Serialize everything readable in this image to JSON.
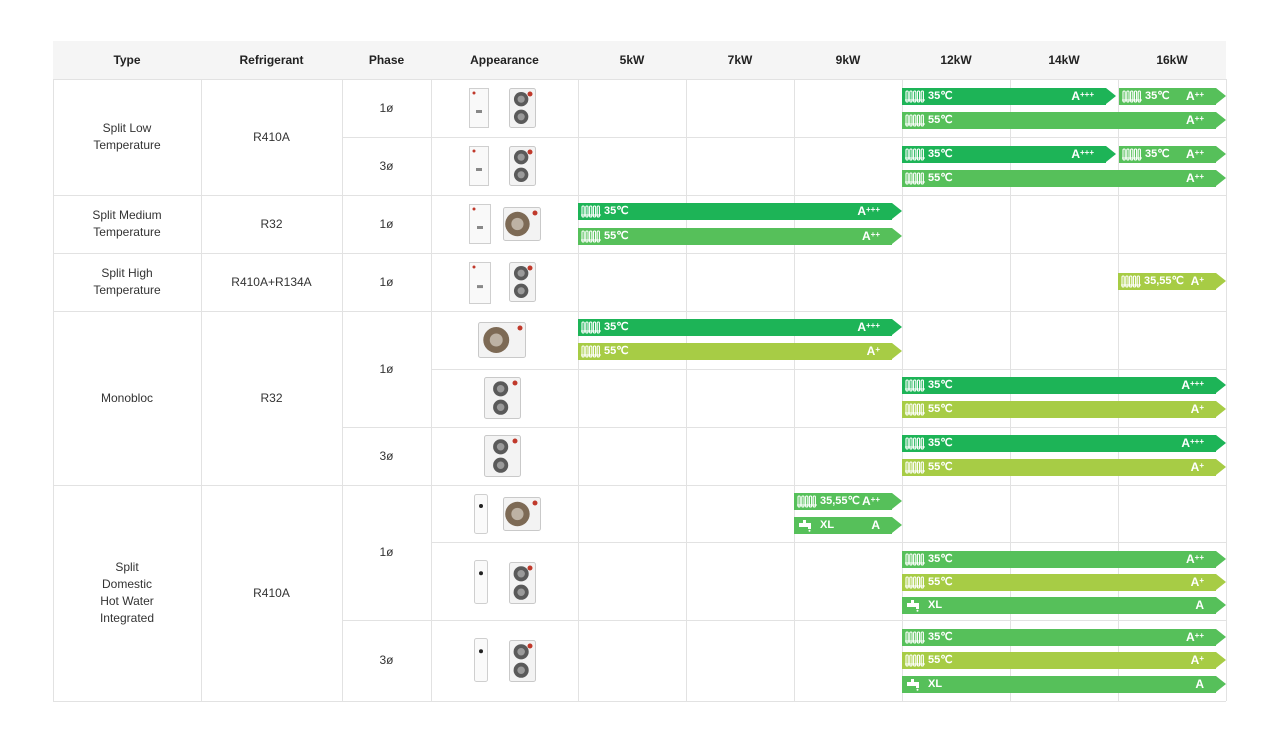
{
  "colors": {
    "dark_green": "#1db457",
    "mid_green": "#56c05a",
    "light_green": "#a7cc45",
    "header_bg": "#f5f5f5",
    "grid": "#e2e2e2"
  },
  "headers": {
    "type": "Type",
    "refrigerant": "Refrigerant",
    "phase": "Phase",
    "appearance": "Appearance",
    "kw5": "5kW",
    "kw7": "7kW",
    "kw9": "9kW",
    "kw12": "12kW",
    "kw14": "14kW",
    "kw16": "16kW"
  },
  "types": {
    "split_low": "Split Low\nTemperature",
    "split_medium": "Split Medium\nTemperature",
    "split_high": "Split High\nTemperature",
    "monobloc": "Monobloc",
    "split_dhw": "Split\nDomestic\nHot Water\nIntegrated"
  },
  "refrigerants": {
    "split_low": "R410A",
    "split_medium": "R32",
    "split_high": "R410A+R134A",
    "monobloc": "R32",
    "split_dhw": "R410A"
  },
  "phases": {
    "single": "1ø",
    "three": "3ø"
  },
  "bars": [
    {
      "id": "sl1-a",
      "label": "35℃",
      "cls": "A",
      "sup": "+++",
      "color": "dark_green",
      "icon": "radiator"
    },
    {
      "id": "sl1-b",
      "label": "35℃",
      "cls": "A",
      "sup": "++",
      "color": "mid_green",
      "icon": "radiator"
    },
    {
      "id": "sl1-c",
      "label": "55℃",
      "cls": "A",
      "sup": "++",
      "color": "mid_green",
      "icon": "radiator"
    },
    {
      "id": "sl3-a",
      "label": "35℃",
      "cls": "A",
      "sup": "+++",
      "color": "dark_green",
      "icon": "radiator"
    },
    {
      "id": "sl3-b",
      "label": "35℃",
      "cls": "A",
      "sup": "++",
      "color": "mid_green",
      "icon": "radiator"
    },
    {
      "id": "sl3-c",
      "label": "55℃",
      "cls": "A",
      "sup": "++",
      "color": "mid_green",
      "icon": "radiator"
    },
    {
      "id": "sm-a",
      "label": "35℃",
      "cls": "A",
      "sup": "+++",
      "color": "dark_green",
      "icon": "radiator"
    },
    {
      "id": "sm-b",
      "label": "55℃",
      "cls": "A",
      "sup": "++",
      "color": "mid_green",
      "icon": "radiator"
    },
    {
      "id": "sh-a",
      "label": "35,55℃",
      "cls": "A",
      "sup": "+",
      "color": "light_green",
      "icon": "radiator"
    },
    {
      "id": "mb1-a",
      "label": "35℃",
      "cls": "A",
      "sup": "+++",
      "color": "dark_green",
      "icon": "radiator"
    },
    {
      "id": "mb1-b",
      "label": "55℃",
      "cls": "A",
      "sup": "+",
      "color": "light_green",
      "icon": "radiator"
    },
    {
      "id": "mb1-c",
      "label": "35℃",
      "cls": "A",
      "sup": "+++",
      "color": "dark_green",
      "icon": "radiator"
    },
    {
      "id": "mb1-d",
      "label": "55℃",
      "cls": "A",
      "sup": "+",
      "color": "light_green",
      "icon": "radiator"
    },
    {
      "id": "mb3-a",
      "label": "35℃",
      "cls": "A",
      "sup": "+++",
      "color": "dark_green",
      "icon": "radiator"
    },
    {
      "id": "mb3-b",
      "label": "55℃",
      "cls": "A",
      "sup": "+",
      "color": "light_green",
      "icon": "radiator"
    },
    {
      "id": "dhw1-a",
      "label": "35,55℃",
      "cls": "A",
      "sup": "++",
      "color": "mid_green",
      "icon": "radiator"
    },
    {
      "id": "dhw1-b",
      "label": "XL",
      "cls": "A",
      "sup": "",
      "color": "mid_green",
      "icon": "tap"
    },
    {
      "id": "dhw1-c",
      "label": "35℃",
      "cls": "A",
      "sup": "++",
      "color": "mid_green",
      "icon": "radiator"
    },
    {
      "id": "dhw1-d",
      "label": "55℃",
      "cls": "A",
      "sup": "+",
      "color": "light_green",
      "icon": "radiator"
    },
    {
      "id": "dhw1-e",
      "label": "XL",
      "cls": "A",
      "sup": "",
      "color": "mid_green",
      "icon": "tap"
    },
    {
      "id": "dhw3-a",
      "label": "35℃",
      "cls": "A",
      "sup": "++",
      "color": "mid_green",
      "icon": "radiator"
    },
    {
      "id": "dhw3-b",
      "label": "55℃",
      "cls": "A",
      "sup": "+",
      "color": "light_green",
      "icon": "radiator"
    },
    {
      "id": "dhw3-c",
      "label": "XL",
      "cls": "A",
      "sup": "",
      "color": "mid_green",
      "icon": "tap"
    }
  ]
}
